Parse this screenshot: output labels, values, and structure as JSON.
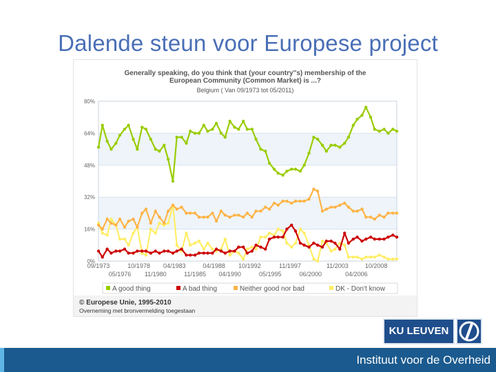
{
  "slide": {
    "title": "Dalende steun voor Europese project",
    "institute": "Instituut voor de Overheid",
    "ku_logo_text": "KU LEUVEN",
    "copyright": "© Europese Unie, 1995-2010",
    "copyright_note": "Overneming met bronvermelding toegestaan"
  },
  "colors": {
    "title": "#4a6fb6",
    "good": "#99cc00",
    "bad": "#cc0000",
    "neither": "#ffb347",
    "dk": "#ffee66",
    "bar": "#1b5a8e"
  },
  "chart_data": {
    "type": "line",
    "title": "Generally speaking, do you think that (your country''s) membership of the European Community (Common Market) is ...?",
    "title_lines": [
      "Generally speaking, do you think that (your country''s) membership of the",
      "European Community (Common Market) is ...?"
    ],
    "subtitle": "Belgium ( Van 09/1973 tot 05/2011)",
    "ylim": [
      0,
      80
    ],
    "y_ticks": [
      "0%",
      "16%",
      "32%",
      "48%",
      "64%",
      "80%"
    ],
    "y_tick_values": [
      0,
      16,
      32,
      48,
      64,
      80
    ],
    "x_range": [
      1973.7,
      2011.4
    ],
    "x_ticks_top": [
      {
        "label": "09/1973",
        "x": 1973.7
      },
      {
        "label": "10/1978",
        "x": 1978.8
      },
      {
        "label": "04/1983",
        "x": 1983.3
      },
      {
        "label": "04/1988",
        "x": 1988.3
      },
      {
        "label": "10/1992",
        "x": 1992.8
      },
      {
        "label": "11/1997",
        "x": 1997.9
      },
      {
        "label": "11/2003",
        "x": 2003.9
      },
      {
        "label": "10/2008",
        "x": 2008.8
      }
    ],
    "x_ticks_bottom": [
      {
        "label": "05/1976",
        "x": 1976.4
      },
      {
        "label": "11/1980",
        "x": 1980.9
      },
      {
        "label": "11/1985",
        "x": 1985.9
      },
      {
        "label": "04/1990",
        "x": 1990.3
      },
      {
        "label": "05/1995",
        "x": 1995.4
      },
      {
        "label": "06/2000",
        "x": 2000.5
      },
      {
        "label": "04/2006",
        "x": 2006.3
      }
    ],
    "x": [
      1973.7,
      1974.2,
      1974.8,
      1975.3,
      1975.9,
      1976.4,
      1977.0,
      1977.5,
      1978.1,
      1978.6,
      1979.2,
      1979.7,
      1980.3,
      1980.9,
      1981.4,
      1982.0,
      1982.5,
      1983.1,
      1983.6,
      1984.2,
      1984.8,
      1985.3,
      1985.9,
      1986.4,
      1987.0,
      1987.5,
      1988.1,
      1988.6,
      1989.2,
      1989.7,
      1990.3,
      1990.9,
      1991.4,
      1992.0,
      1992.5,
      1993.1,
      1993.6,
      1994.2,
      1994.8,
      1995.3,
      1995.9,
      1996.4,
      1997.0,
      1997.5,
      1998.1,
      1998.6,
      1999.2,
      1999.7,
      2000.3,
      2000.9,
      2001.4,
      2002.0,
      2002.5,
      2003.1,
      2003.6,
      2004.2,
      2004.8,
      2005.3,
      2005.9,
      2006.4,
      2007.0,
      2007.5,
      2008.1,
      2008.6,
      2009.2,
      2009.8,
      2010.3,
      2010.9,
      2011.4
    ],
    "series": [
      {
        "name": "A good thing",
        "color": "#99cc00",
        "values": [
          57,
          68,
          60,
          56,
          59,
          63,
          66,
          68,
          61,
          56,
          67,
          66,
          61,
          56,
          55,
          58,
          51,
          40,
          62,
          62,
          59,
          65,
          64,
          64,
          68,
          65,
          66,
          69,
          64,
          62,
          70,
          67,
          66,
          70,
          66,
          66,
          61,
          56,
          55,
          49,
          46,
          44,
          43,
          45,
          46,
          46,
          45,
          48,
          54,
          62,
          61,
          58,
          55,
          58,
          58,
          57,
          59,
          62,
          68,
          71,
          73,
          77,
          72,
          66,
          65,
          66,
          64,
          66,
          65
        ]
      },
      {
        "name": "A bad thing",
        "color": "#cc0000",
        "values": [
          5,
          2,
          6,
          4,
          5,
          5,
          6,
          4,
          4,
          5,
          5,
          5,
          4,
          5,
          4,
          5,
          5,
          4,
          5,
          6,
          3,
          3,
          3,
          4,
          4,
          4,
          4,
          6,
          5,
          4,
          5,
          5,
          7,
          7,
          4,
          5,
          8,
          7,
          6,
          11,
          12,
          12,
          12,
          16,
          18,
          15,
          9,
          8,
          7,
          9,
          8,
          7,
          10,
          10,
          9,
          6,
          14,
          9,
          11,
          12,
          10,
          11,
          12,
          11,
          11,
          11,
          12,
          13,
          12
        ]
      },
      {
        "name": "Neither good nor bad",
        "color": "#ffb347",
        "values": [
          18,
          16,
          21,
          19,
          18,
          21,
          17,
          20,
          21,
          17,
          24,
          26,
          19,
          25,
          22,
          19,
          25,
          28,
          26,
          27,
          24,
          24,
          24,
          22,
          22,
          22,
          24,
          20,
          25,
          23,
          22,
          23,
          23,
          22,
          24,
          22,
          25,
          25,
          27,
          26,
          29,
          28,
          30,
          30,
          29,
          30,
          30,
          30,
          31,
          36,
          35,
          25,
          26,
          27,
          27,
          28,
          29,
          27,
          25,
          25,
          26,
          22,
          22,
          21,
          23,
          22,
          24,
          24,
          24
        ]
      },
      {
        "name": "DK - Don't know",
        "color": "#ffee66",
        "values": [
          19,
          14,
          13,
          21,
          18,
          11,
          11,
          8,
          14,
          17,
          4,
          3,
          16,
          14,
          19,
          18,
          19,
          28,
          8,
          5,
          14,
          8,
          9,
          10,
          6,
          9,
          6,
          5,
          6,
          11,
          3,
          5,
          4,
          1,
          6,
          7,
          6,
          12,
          12,
          14,
          13,
          16,
          15,
          9,
          7,
          9,
          16,
          14,
          8,
          1,
          0,
          10,
          9,
          5,
          6,
          9,
          8,
          2,
          2,
          2,
          1,
          2,
          2,
          2,
          3,
          2,
          1,
          1,
          1
        ]
      }
    ],
    "legend": [
      "A good thing",
      "A bad thing",
      "Neither good nor bad",
      "DK - Don't know"
    ],
    "legend_position": "bottom",
    "grid": true
  }
}
